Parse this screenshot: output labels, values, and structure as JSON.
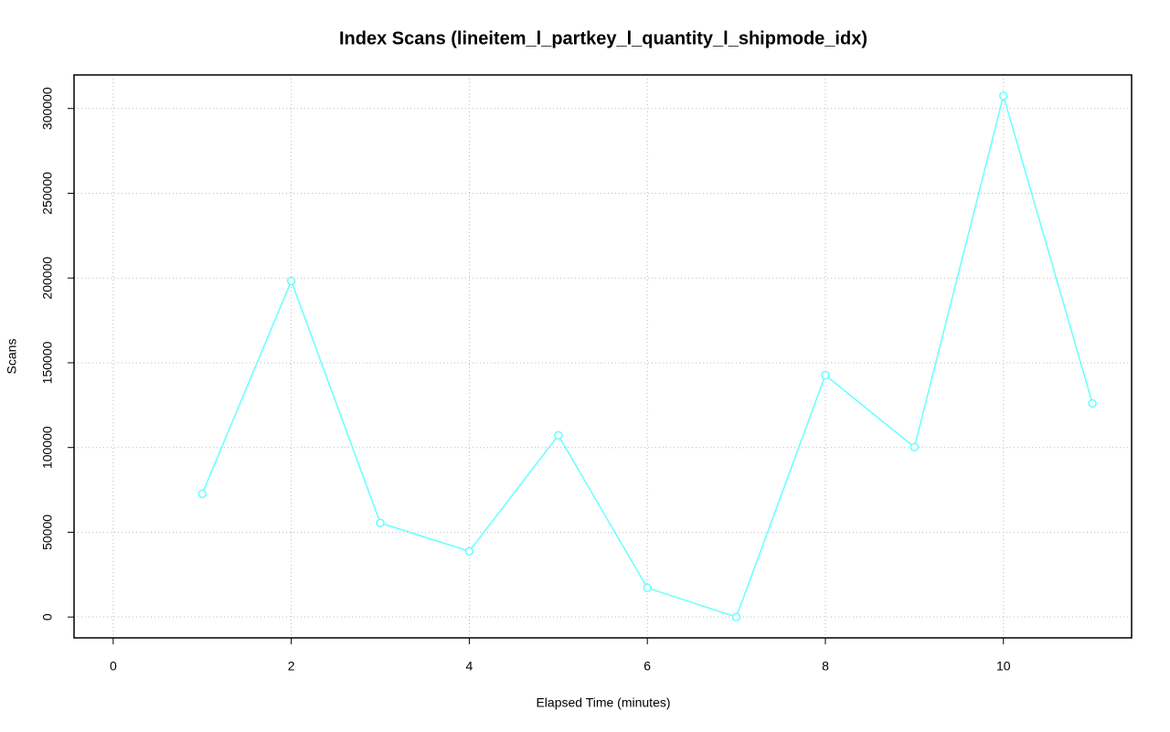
{
  "chart_data": {
    "type": "line",
    "title": "Index Scans (lineitem_l_partkey_l_quantity_l_shipmode_idx)",
    "x_label": "Elapsed Time (minutes)",
    "y_label": "Scans",
    "x": [
      1,
      2,
      3,
      4,
      5,
      6,
      7,
      8,
      9,
      10,
      11
    ],
    "series": [
      {
        "name": "Scans",
        "color": "#66ffff",
        "values": [
          72700,
          198200,
          55500,
          38800,
          107200,
          17200,
          0,
          142700,
          100200,
          307500,
          126000
        ]
      }
    ],
    "xlim": [
      -0.44,
      11.44
    ],
    "xticks": [
      0,
      2,
      4,
      6,
      8,
      10
    ],
    "ylim": [
      -12300,
      319800
    ],
    "yticks": [
      0,
      50000,
      100000,
      150000,
      200000,
      250000,
      300000
    ],
    "grid": true
  }
}
